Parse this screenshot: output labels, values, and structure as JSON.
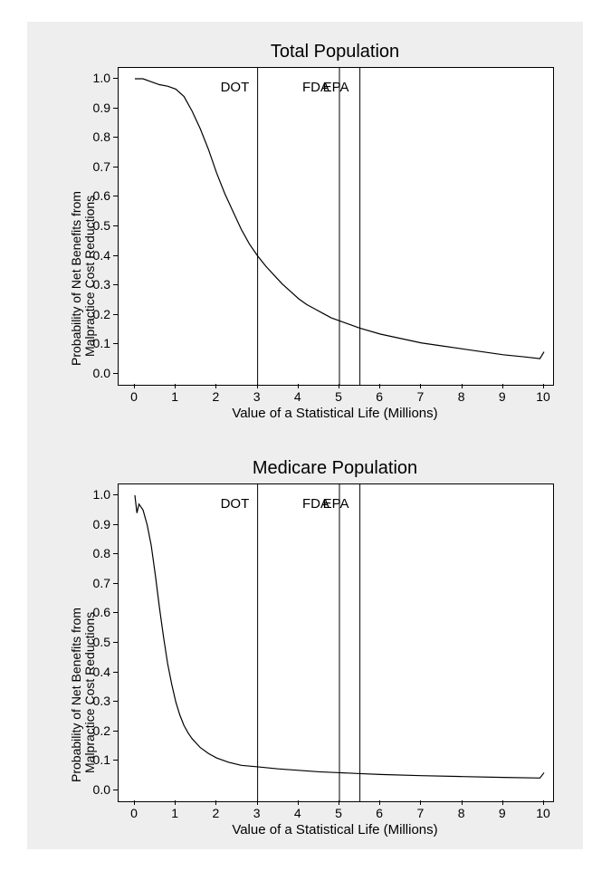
{
  "figure": {
    "background_color": "#ffffff",
    "outer_frame_color": "#eeeeee",
    "panel_bg": "#ffffff",
    "panel_border": "#000000",
    "text_color": "#000000",
    "title_fontsize": 20,
    "axis_label_fontsize": 15,
    "tick_fontsize": 14,
    "ref_label_fontsize": 15,
    "line_color": "#000000",
    "line_width": 1.2
  },
  "axes": {
    "xlim": [
      0,
      10
    ],
    "ylim": [
      0.0,
      1.0
    ],
    "xticks": [
      0,
      1,
      2,
      3,
      4,
      5,
      6,
      7,
      8,
      9,
      10
    ],
    "yticks": [
      0.0,
      0.1,
      0.2,
      0.3,
      0.4,
      0.5,
      0.6,
      0.7,
      0.8,
      0.9,
      1.0
    ],
    "ytick_labels": [
      "0.0",
      "0.1",
      "0.2",
      "0.3",
      "0.4",
      "0.5",
      "0.6",
      "0.7",
      "0.8",
      "0.9",
      "1.0"
    ],
    "xlabel": "Value of a Statistical Life (Millions)",
    "ylabel_line1": "Probability of Net Benefits from",
    "ylabel_line2": "Malpractice Cost Reductions"
  },
  "reference_lines": [
    {
      "label": "DOT",
      "x": 3.0
    },
    {
      "label": "FDA",
      "x": 5.0
    },
    {
      "label": "EPA",
      "x": 5.5
    }
  ],
  "panels": [
    {
      "key": "total",
      "title": "Total Population",
      "series": [
        {
          "x": 0.0,
          "y": 1.0
        },
        {
          "x": 0.2,
          "y": 1.0
        },
        {
          "x": 0.4,
          "y": 0.99
        },
        {
          "x": 0.6,
          "y": 0.98
        },
        {
          "x": 0.8,
          "y": 0.975
        },
        {
          "x": 1.0,
          "y": 0.965
        },
        {
          "x": 1.2,
          "y": 0.94
        },
        {
          "x": 1.4,
          "y": 0.89
        },
        {
          "x": 1.6,
          "y": 0.83
        },
        {
          "x": 1.8,
          "y": 0.76
        },
        {
          "x": 2.0,
          "y": 0.68
        },
        {
          "x": 2.2,
          "y": 0.61
        },
        {
          "x": 2.4,
          "y": 0.55
        },
        {
          "x": 2.6,
          "y": 0.49
        },
        {
          "x": 2.8,
          "y": 0.44
        },
        {
          "x": 3.0,
          "y": 0.4
        },
        {
          "x": 3.2,
          "y": 0.365
        },
        {
          "x": 3.4,
          "y": 0.335
        },
        {
          "x": 3.6,
          "y": 0.305
        },
        {
          "x": 3.8,
          "y": 0.28
        },
        {
          "x": 4.0,
          "y": 0.255
        },
        {
          "x": 4.2,
          "y": 0.235
        },
        {
          "x": 4.4,
          "y": 0.22
        },
        {
          "x": 4.6,
          "y": 0.205
        },
        {
          "x": 4.8,
          "y": 0.19
        },
        {
          "x": 5.0,
          "y": 0.18
        },
        {
          "x": 5.3,
          "y": 0.165
        },
        {
          "x": 5.5,
          "y": 0.155
        },
        {
          "x": 6.0,
          "y": 0.135
        },
        {
          "x": 6.5,
          "y": 0.12
        },
        {
          "x": 7.0,
          "y": 0.105
        },
        {
          "x": 7.5,
          "y": 0.095
        },
        {
          "x": 8.0,
          "y": 0.085
        },
        {
          "x": 8.5,
          "y": 0.075
        },
        {
          "x": 9.0,
          "y": 0.065
        },
        {
          "x": 9.5,
          "y": 0.058
        },
        {
          "x": 9.9,
          "y": 0.052
        },
        {
          "x": 10.0,
          "y": 0.075
        }
      ]
    },
    {
      "key": "medicare",
      "title": "Medicare Population",
      "series": [
        {
          "x": 0.0,
          "y": 1.0
        },
        {
          "x": 0.05,
          "y": 0.94
        },
        {
          "x": 0.1,
          "y": 0.97
        },
        {
          "x": 0.2,
          "y": 0.95
        },
        {
          "x": 0.3,
          "y": 0.9
        },
        {
          "x": 0.4,
          "y": 0.83
        },
        {
          "x": 0.5,
          "y": 0.73
        },
        {
          "x": 0.6,
          "y": 0.62
        },
        {
          "x": 0.7,
          "y": 0.52
        },
        {
          "x": 0.8,
          "y": 0.43
        },
        {
          "x": 0.9,
          "y": 0.36
        },
        {
          "x": 1.0,
          "y": 0.3
        },
        {
          "x": 1.1,
          "y": 0.255
        },
        {
          "x": 1.2,
          "y": 0.22
        },
        {
          "x": 1.3,
          "y": 0.195
        },
        {
          "x": 1.4,
          "y": 0.175
        },
        {
          "x": 1.6,
          "y": 0.145
        },
        {
          "x": 1.8,
          "y": 0.125
        },
        {
          "x": 2.0,
          "y": 0.11
        },
        {
          "x": 2.3,
          "y": 0.095
        },
        {
          "x": 2.6,
          "y": 0.085
        },
        {
          "x": 3.0,
          "y": 0.08
        },
        {
          "x": 3.5,
          "y": 0.073
        },
        {
          "x": 4.0,
          "y": 0.068
        },
        {
          "x": 4.5,
          "y": 0.063
        },
        {
          "x": 5.0,
          "y": 0.06
        },
        {
          "x": 5.5,
          "y": 0.057
        },
        {
          "x": 6.0,
          "y": 0.054
        },
        {
          "x": 7.0,
          "y": 0.05
        },
        {
          "x": 8.0,
          "y": 0.047
        },
        {
          "x": 9.0,
          "y": 0.044
        },
        {
          "x": 9.9,
          "y": 0.042
        },
        {
          "x": 10.0,
          "y": 0.06
        }
      ]
    }
  ]
}
